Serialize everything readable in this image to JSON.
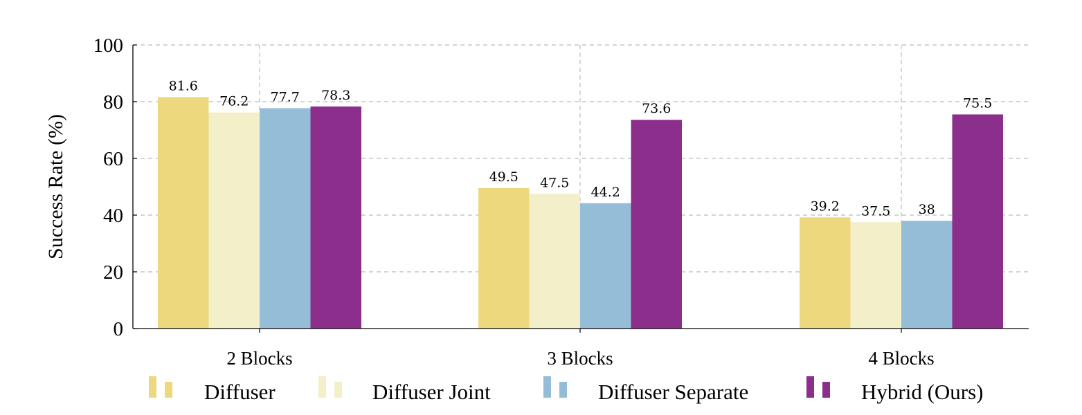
{
  "chart_data": {
    "type": "bar",
    "title": "",
    "xlabel": "",
    "ylabel": "Success Rate (%)",
    "ylim": [
      0,
      100
    ],
    "yticks": [
      0,
      20,
      40,
      60,
      80,
      100
    ],
    "grid": true,
    "legend_position": "bottom",
    "categories": [
      "2 Blocks",
      "3 Blocks",
      "4 Blocks"
    ],
    "series": [
      {
        "name": "Diffuser",
        "color": "#EDD87E",
        "values": [
          81.6,
          49.5,
          39.2
        ],
        "labels": [
          "81.6",
          "49.5",
          "39.2"
        ]
      },
      {
        "name": "Diffuser Joint",
        "color": "#F3EFC9",
        "values": [
          76.2,
          47.5,
          37.5
        ],
        "labels": [
          "76.2",
          "47.5",
          "37.5"
        ]
      },
      {
        "name": "Diffuser Separate",
        "color": "#95BDD8",
        "values": [
          77.7,
          44.2,
          38
        ],
        "labels": [
          "77.7",
          "44.2",
          "38"
        ]
      },
      {
        "name": "Hybrid (Ours)",
        "color": "#8B2E8C",
        "values": [
          78.3,
          73.6,
          75.5
        ],
        "labels": [
          "78.3",
          "73.6",
          "75.5"
        ]
      }
    ]
  }
}
